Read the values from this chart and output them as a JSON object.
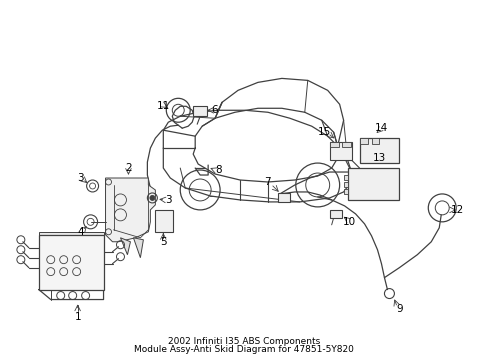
{
  "background_color": "#ffffff",
  "line_color": "#404040",
  "text_color": "#000000",
  "fig_width": 4.89,
  "fig_height": 3.6,
  "dpi": 100,
  "title_line1": "2002 Infiniti I35 ABS Components",
  "title_line2": "Module Assy-Anti Skid Diagram for 47851-5Y820",
  "title_fontsize": 6.5,
  "label_fontsize": 7.5,
  "lw": 0.7
}
